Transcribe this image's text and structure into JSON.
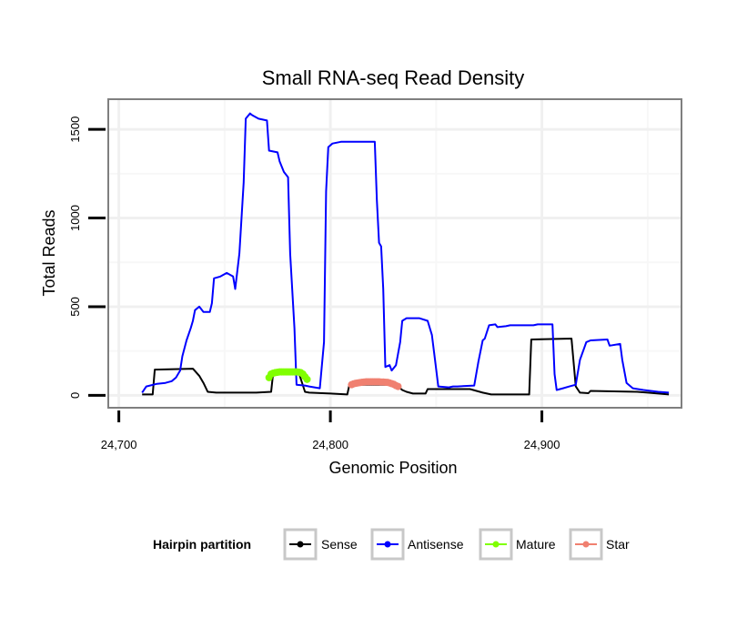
{
  "chart_data": {
    "type": "line",
    "title": "Small RNA-seq Read Density",
    "xlabel": "Genomic Position",
    "ylabel": "Total Reads",
    "xlim": [
      24695,
      24966
    ],
    "ylim": [
      -70,
      1670
    ],
    "x_ticks": [
      24700,
      24800,
      24900
    ],
    "x_tick_labels": [
      "24,700",
      "24,800",
      "24,900"
    ],
    "y_ticks": [
      0,
      500,
      1000,
      1500
    ],
    "y_tick_labels": [
      "0",
      "500",
      "1000",
      "1500"
    ],
    "grid": true,
    "legend": {
      "title": "Hairpin partition",
      "position": "bottom",
      "entries": [
        "Sense",
        "Antisense",
        "Mature",
        "Star"
      ]
    },
    "series": [
      {
        "name": "Sense",
        "color": "#000000",
        "markers": false,
        "points": [
          [
            24711,
            5
          ],
          [
            24716,
            5
          ],
          [
            24717,
            145
          ],
          [
            24735,
            150
          ],
          [
            24738,
            110
          ],
          [
            24740,
            70
          ],
          [
            24742,
            20
          ],
          [
            24746,
            15
          ],
          [
            24765,
            15
          ],
          [
            24772,
            20
          ],
          [
            24773,
            130
          ],
          [
            24785,
            130
          ],
          [
            24788,
            20
          ],
          [
            24790,
            15
          ],
          [
            24800,
            10
          ],
          [
            24808,
            5
          ],
          [
            24809,
            60
          ],
          [
            24831,
            60
          ],
          [
            24834,
            30
          ],
          [
            24836,
            20
          ],
          [
            24839,
            10
          ],
          [
            24845,
            10
          ],
          [
            24846,
            35
          ],
          [
            24866,
            35
          ],
          [
            24872,
            15
          ],
          [
            24876,
            5
          ],
          [
            24894,
            5
          ],
          [
            24895,
            315
          ],
          [
            24914,
            320
          ],
          [
            24916,
            50
          ],
          [
            24918,
            15
          ],
          [
            24922,
            12
          ],
          [
            24923,
            25
          ],
          [
            24945,
            20
          ],
          [
            24950,
            15
          ],
          [
            24955,
            10
          ],
          [
            24960,
            5
          ]
        ]
      },
      {
        "name": "Antisense",
        "color": "#0000ff",
        "markers": false,
        "points": [
          [
            24711,
            15
          ],
          [
            24713,
            50
          ],
          [
            24718,
            65
          ],
          [
            24722,
            70
          ],
          [
            24725,
            80
          ],
          [
            24727,
            100
          ],
          [
            24729,
            140
          ],
          [
            24730,
            220
          ],
          [
            24732,
            310
          ],
          [
            24734,
            380
          ],
          [
            24735,
            420
          ],
          [
            24736,
            480
          ],
          [
            24738,
            500
          ],
          [
            24740,
            470
          ],
          [
            24743,
            470
          ],
          [
            24744,
            520
          ],
          [
            24745,
            660
          ],
          [
            24748,
            670
          ],
          [
            24751,
            690
          ],
          [
            24754,
            670
          ],
          [
            24755,
            600
          ],
          [
            24757,
            800
          ],
          [
            24759,
            1200
          ],
          [
            24760,
            1560
          ],
          [
            24762,
            1590
          ],
          [
            24763,
            1580
          ],
          [
            24766,
            1560
          ],
          [
            24770,
            1550
          ],
          [
            24771,
            1380
          ],
          [
            24775,
            1370
          ],
          [
            24776,
            1320
          ],
          [
            24778,
            1260
          ],
          [
            24780,
            1230
          ],
          [
            24781,
            800
          ],
          [
            24783,
            380
          ],
          [
            24784,
            60
          ],
          [
            24788,
            55
          ],
          [
            24790,
            50
          ],
          [
            24795,
            40
          ],
          [
            24797,
            300
          ],
          [
            24798,
            1150
          ],
          [
            24799,
            1400
          ],
          [
            24801,
            1420
          ],
          [
            24805,
            1430
          ],
          [
            24818,
            1430
          ],
          [
            24821,
            1430
          ],
          [
            24822,
            1100
          ],
          [
            24823,
            860
          ],
          [
            24824,
            840
          ],
          [
            24825,
            600
          ],
          [
            24826,
            160
          ],
          [
            24828,
            170
          ],
          [
            24829,
            140
          ],
          [
            24831,
            170
          ],
          [
            24833,
            300
          ],
          [
            24834,
            420
          ],
          [
            24836,
            435
          ],
          [
            24842,
            435
          ],
          [
            24846,
            420
          ],
          [
            24848,
            340
          ],
          [
            24850,
            150
          ],
          [
            24851,
            50
          ],
          [
            24856,
            45
          ],
          [
            24858,
            50
          ],
          [
            24860,
            50
          ],
          [
            24868,
            55
          ],
          [
            24870,
            190
          ],
          [
            24872,
            310
          ],
          [
            24873,
            320
          ],
          [
            24875,
            395
          ],
          [
            24878,
            400
          ],
          [
            24879,
            385
          ],
          [
            24883,
            390
          ],
          [
            24885,
            395
          ],
          [
            24893,
            395
          ],
          [
            24896,
            395
          ],
          [
            24898,
            400
          ],
          [
            24905,
            400
          ],
          [
            24906,
            120
          ],
          [
            24907,
            30
          ],
          [
            24910,
            40
          ],
          [
            24913,
            50
          ],
          [
            24916,
            60
          ],
          [
            24918,
            200
          ],
          [
            24921,
            300
          ],
          [
            24923,
            310
          ],
          [
            24931,
            315
          ],
          [
            24932,
            280
          ],
          [
            24937,
            290
          ],
          [
            24938,
            200
          ],
          [
            24940,
            70
          ],
          [
            24943,
            40
          ],
          [
            24948,
            30
          ],
          [
            24955,
            20
          ],
          [
            24960,
            15
          ]
        ]
      },
      {
        "name": "Mature",
        "color": "#80ff00",
        "markers": true,
        "points": [
          [
            24771,
            100
          ],
          [
            24772,
            120
          ],
          [
            24773,
            125
          ],
          [
            24774,
            128
          ],
          [
            24775,
            130
          ],
          [
            24776,
            132
          ],
          [
            24777,
            132
          ],
          [
            24778,
            132
          ],
          [
            24779,
            132
          ],
          [
            24780,
            132
          ],
          [
            24781,
            132
          ],
          [
            24782,
            132
          ],
          [
            24783,
            132
          ],
          [
            24784,
            132
          ],
          [
            24785,
            131
          ],
          [
            24786,
            128
          ],
          [
            24787,
            120
          ],
          [
            24788,
            105
          ],
          [
            24789,
            90
          ]
        ]
      },
      {
        "name": "Star",
        "color": "#f08070",
        "markers": true,
        "points": [
          [
            24810,
            60
          ],
          [
            24811,
            65
          ],
          [
            24812,
            68
          ],
          [
            24813,
            70
          ],
          [
            24814,
            72
          ],
          [
            24815,
            74
          ],
          [
            24816,
            75
          ],
          [
            24817,
            76
          ],
          [
            24818,
            76
          ],
          [
            24819,
            76
          ],
          [
            24820,
            76
          ],
          [
            24821,
            76
          ],
          [
            24822,
            76
          ],
          [
            24823,
            76
          ],
          [
            24824,
            75
          ],
          [
            24825,
            75
          ],
          [
            24826,
            74
          ],
          [
            24827,
            73
          ],
          [
            24828,
            70
          ],
          [
            24829,
            66
          ],
          [
            24830,
            62
          ],
          [
            24831,
            55
          ],
          [
            24832,
            50
          ]
        ]
      }
    ]
  }
}
